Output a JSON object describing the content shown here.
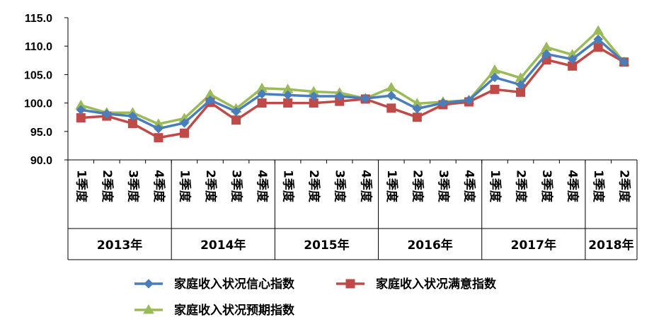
{
  "chart_data": {
    "type": "line",
    "title": "",
    "xlabel": "",
    "ylabel": "",
    "ylim": [
      90,
      115
    ],
    "yticks": [
      "90.0",
      "95.0",
      "100.0",
      "105.0",
      "110.0",
      "115.0"
    ],
    "grid": false,
    "legend_position": "bottom",
    "groups": [
      {
        "label": "2013年",
        "quarters": [
          "1季度",
          "2季度",
          "3季度",
          "4季度"
        ]
      },
      {
        "label": "2014年",
        "quarters": [
          "1季度",
          "2季度",
          "3季度",
          "4季度"
        ]
      },
      {
        "label": "2015年",
        "quarters": [
          "1季度",
          "2季度",
          "3季度",
          "4季度"
        ]
      },
      {
        "label": "2016年",
        "quarters": [
          "1季度",
          "2季度",
          "3季度",
          "4季度"
        ]
      },
      {
        "label": "2017年",
        "quarters": [
          "1季度",
          "2季度",
          "3季度",
          "4季度"
        ]
      },
      {
        "label": "2018年",
        "quarters": [
          "1季度",
          "2季度"
        ]
      }
    ],
    "series": [
      {
        "name": "家庭收入状况信心指数",
        "color": "#4a7ebb",
        "marker": "diamond",
        "values": [
          98.8,
          98.1,
          97.7,
          95.5,
          96.5,
          100.5,
          98.5,
          101.6,
          101.4,
          101.2,
          101.2,
          100.8,
          101.3,
          99.0,
          100.0,
          100.5,
          104.5,
          103.2,
          108.6,
          107.7,
          111.2,
          107.2
        ]
      },
      {
        "name": "家庭收入状况满意指数",
        "color": "#be4b48",
        "marker": "square",
        "values": [
          97.4,
          97.7,
          96.4,
          93.9,
          94.7,
          100.1,
          97.0,
          100.0,
          100.0,
          100.0,
          100.3,
          100.7,
          99.1,
          97.5,
          99.7,
          100.2,
          102.4,
          101.9,
          107.6,
          106.5,
          109.8,
          107.2
        ]
      },
      {
        "name": "家庭收入状况预期指数",
        "color": "#9bbb59",
        "marker": "triangle",
        "values": [
          99.6,
          98.3,
          98.3,
          96.3,
          97.3,
          101.5,
          99.0,
          102.6,
          102.4,
          102.0,
          101.8,
          100.8,
          102.7,
          99.9,
          100.2,
          100.5,
          105.8,
          104.4,
          109.8,
          108.5,
          112.7,
          107.2
        ]
      }
    ]
  }
}
